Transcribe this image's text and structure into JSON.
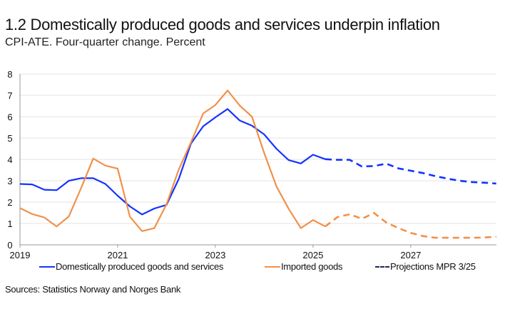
{
  "title": "1.2 Domestically produced goods and services underpin inflation",
  "subtitle": "CPI-ATE. Four-quarter change. Percent",
  "source": "Sources: Statistics Norway and Norges Bank",
  "colors": {
    "domestic": "#1433ff",
    "imported": "#f0914a",
    "projection_legend": "#1c2a5a",
    "grid": "#e3e3e3",
    "axis": "#999999"
  },
  "chart_data": {
    "type": "line",
    "title": "1.2 Domestically produced goods and services underpin inflation",
    "ylabel": "Percent",
    "ylim": [
      0,
      8
    ],
    "yticks": [
      0,
      1,
      2,
      3,
      4,
      5,
      6,
      7,
      8
    ],
    "xticks": [
      "2019",
      "2021",
      "2023",
      "2025",
      "2027"
    ],
    "grid": true,
    "legend_position": "bottom",
    "x": [
      "2019Q1",
      "2019Q2",
      "2019Q3",
      "2019Q4",
      "2020Q1",
      "2020Q2",
      "2020Q3",
      "2020Q4",
      "2021Q1",
      "2021Q2",
      "2021Q3",
      "2021Q4",
      "2022Q1",
      "2022Q2",
      "2022Q3",
      "2022Q4",
      "2023Q1",
      "2023Q2",
      "2023Q3",
      "2023Q4",
      "2024Q1",
      "2024Q2",
      "2024Q3",
      "2024Q4",
      "2025Q1",
      "2025Q2",
      "2025Q3",
      "2025Q4",
      "2026Q1",
      "2026Q2",
      "2026Q3",
      "2026Q4",
      "2027Q1",
      "2027Q2",
      "2027Q3",
      "2027Q4",
      "2028Q1",
      "2028Q2",
      "2028Q3",
      "2028Q4"
    ],
    "projection_start": "2025Q2",
    "series": [
      {
        "name": "Domestically produced goods and services",
        "values": [
          2.85,
          2.83,
          2.58,
          2.56,
          3.0,
          3.12,
          3.12,
          2.85,
          2.3,
          1.8,
          1.42,
          1.7,
          1.87,
          3.08,
          4.74,
          5.55,
          5.97,
          6.36,
          5.82,
          5.58,
          5.17,
          4.5,
          3.97,
          3.81,
          4.22,
          4.01,
          3.98,
          3.98,
          3.67,
          3.69,
          3.8,
          3.58,
          3.47,
          3.36,
          3.22,
          3.1,
          3.0,
          2.94,
          2.91,
          2.87
        ]
      },
      {
        "name": "Imported goods",
        "values": [
          1.72,
          1.44,
          1.28,
          0.86,
          1.33,
          2.65,
          4.04,
          3.71,
          3.57,
          1.32,
          0.64,
          0.78,
          1.9,
          3.52,
          4.8,
          6.15,
          6.55,
          7.23,
          6.52,
          6.0,
          4.3,
          2.74,
          1.69,
          0.78,
          1.16,
          0.86,
          1.3,
          1.43,
          1.22,
          1.49,
          1.04,
          0.78,
          0.56,
          0.41,
          0.33,
          0.33,
          0.33,
          0.33,
          0.34,
          0.38
        ]
      }
    ],
    "legend": [
      "Domestically produced goods and services",
      "Imported goods",
      "Projections MPR 3/25"
    ]
  }
}
